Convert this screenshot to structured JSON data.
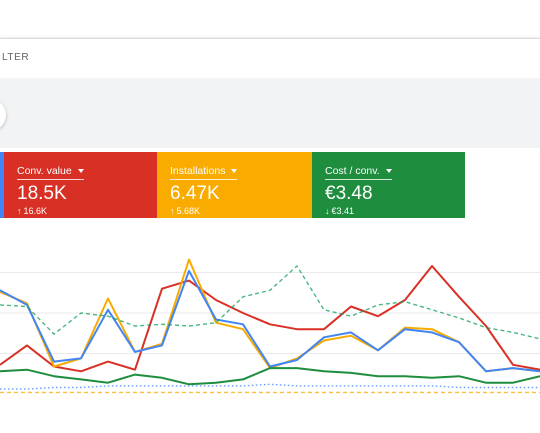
{
  "filter": {
    "label": "LTER"
  },
  "cards": [
    {
      "id": "red",
      "label": "Conv. value",
      "value": "18.5K",
      "delta_arrow": "↑",
      "delta": "16.6K",
      "color": "#d93025"
    },
    {
      "id": "yellow",
      "label": "Installations",
      "value": "6.47K",
      "delta_arrow": "↑",
      "delta": "5.68K",
      "color": "#f9ab00"
    },
    {
      "id": "green",
      "label": "Cost / conv.",
      "value": "€3.48",
      "delta_arrow": "↓",
      "delta": "€3.41",
      "color": "#1e8e3e"
    }
  ],
  "chart_data": {
    "type": "line",
    "title": "",
    "xlabel": "",
    "ylabel": "",
    "ylim": [
      0,
      100
    ],
    "grid": true,
    "x": [
      0,
      1,
      2,
      3,
      4,
      5,
      6,
      7,
      8,
      9,
      10,
      11,
      12,
      13,
      14,
      15,
      16,
      17,
      18,
      19,
      20
    ],
    "series": [
      {
        "color": "#d93025",
        "style": "solid",
        "values": [
          18,
          30,
          17,
          14,
          20,
          15,
          65,
          70,
          58,
          50,
          43,
          40,
          40,
          54,
          48,
          58,
          79,
          60,
          42,
          18,
          15
        ]
      },
      {
        "color": "#f9ab00",
        "style": "solid",
        "values": [
          63,
          56,
          17,
          22,
          59,
          26,
          31,
          83,
          44,
          40,
          16,
          22,
          33,
          36,
          27,
          41,
          40,
          32,
          14,
          16,
          14
        ]
      },
      {
        "color": "#4285f4",
        "style": "solid",
        "values": [
          64,
          55,
          20,
          22,
          52,
          26,
          30,
          76,
          46,
          43,
          17,
          21,
          35,
          38,
          27,
          40,
          38,
          32,
          14,
          16,
          14
        ]
      },
      {
        "color": "#1e8e3e",
        "style": "solid",
        "values": [
          14,
          15,
          11,
          9,
          7,
          12,
          10,
          6,
          7,
          9,
          16,
          16,
          14,
          13,
          11,
          11,
          10,
          11,
          7,
          7,
          11
        ]
      },
      {
        "color": "#0f9d58",
        "style": "dashed",
        "values": [
          55,
          54,
          37,
          50,
          48,
          42,
          43,
          42,
          44,
          60,
          64,
          79,
          52,
          48,
          55,
          57,
          52,
          47,
          41,
          38,
          34
        ]
      },
      {
        "color": "#4285f4",
        "style": "dotted",
        "values": [
          3,
          3,
          4,
          4,
          5,
          5,
          5,
          5,
          5,
          5,
          6,
          5,
          5,
          5,
          5,
          5,
          5,
          4,
          4,
          4,
          4
        ]
      },
      {
        "color": "#f9ab00",
        "style": "dashed",
        "values": [
          1,
          1,
          1,
          1,
          1,
          1,
          1,
          1,
          1,
          1,
          1,
          1,
          1,
          1,
          1,
          1,
          1,
          1,
          1,
          1,
          1
        ]
      }
    ]
  }
}
